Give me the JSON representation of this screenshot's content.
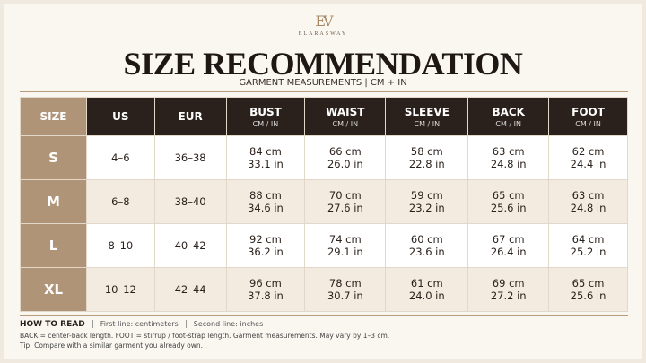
{
  "header": {
    "logo": "EV",
    "brand": "ELARASWAY",
    "title": "SIZE RECOMMENDATION",
    "subtitle": "GARMENT MEASUREMENTS | CM + IN"
  },
  "table": {
    "columns": [
      {
        "label": "SIZE"
      },
      {
        "label": "US"
      },
      {
        "label": "EUR"
      },
      {
        "label": "BUST",
        "unit": "CM / IN"
      },
      {
        "label": "WAIST",
        "unit": "CM / IN"
      },
      {
        "label": "SLEEVE",
        "unit": "CM / IN"
      },
      {
        "label": "BACK",
        "unit": "CM / IN"
      },
      {
        "label": "FOOT",
        "unit": "CM / IN"
      }
    ],
    "rows": [
      [
        "S",
        "4–6",
        "36–38",
        [
          "84 cm",
          "33.1 in"
        ],
        [
          "66 cm",
          "26.0 in"
        ],
        [
          "58 cm",
          "22.8 in"
        ],
        [
          "63 cm",
          "24.8 in"
        ],
        [
          "62 cm",
          "24.4 in"
        ]
      ],
      [
        "M",
        "6–8",
        "38–40",
        [
          "88 cm",
          "34.6 in"
        ],
        [
          "70 cm",
          "27.6 in"
        ],
        [
          "59 cm",
          "23.2 in"
        ],
        [
          "65 cm",
          "25.6 in"
        ],
        [
          "63 cm",
          "24.8 in"
        ]
      ],
      [
        "L",
        "8–10",
        "40–42",
        [
          "92 cm",
          "36.2 in"
        ],
        [
          "74 cm",
          "29.1 in"
        ],
        [
          "60 cm",
          "23.6 in"
        ],
        [
          "67 cm",
          "26.4 in"
        ],
        [
          "64 cm",
          "25.2 in"
        ]
      ],
      [
        "XL",
        "10–12",
        "42–44",
        [
          "96 cm",
          "37.8 in"
        ],
        [
          "78 cm",
          "30.7 in"
        ],
        [
          "61 cm",
          "24.0 in"
        ],
        [
          "69 cm",
          "27.2 in"
        ],
        [
          "65 cm",
          "25.6 in"
        ]
      ]
    ]
  },
  "footer": {
    "label": "HOW TO READ",
    "items": [
      "First line: centimeters",
      "Second line: inches"
    ],
    "notes": [
      "BACK = center-back length. FOOT = stirrup / foot-strap length. Garment measurements. May vary by 1–3 cm.",
      "Tip: Compare with a similar garment you already own."
    ]
  }
}
